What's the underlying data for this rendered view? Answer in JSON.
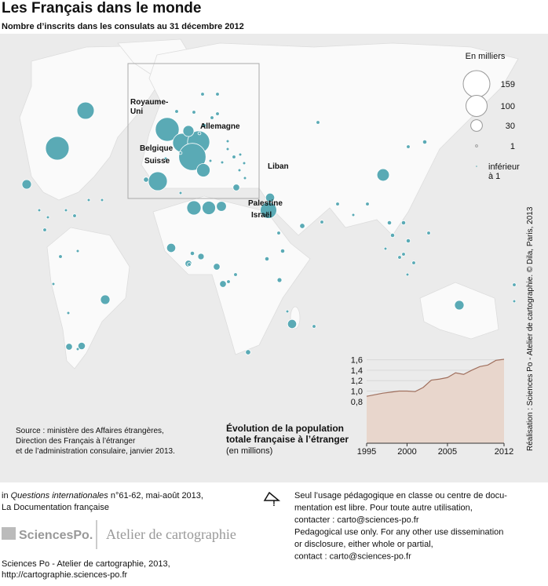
{
  "title": "Les Français dans le monde",
  "subtitle": "Nombre d’inscrits dans les consulats au 31 décembre 2012",
  "map": {
    "bubble_color": "#5aaab5",
    "values": [
      66,
      124,
      20,
      126,
      80,
      110,
      165,
      27,
      80,
      40,
      45,
      40,
      22,
      60,
      18,
      34,
      20,
      18,
      18,
      20,
      12,
      10,
      10,
      10,
      10,
      3,
      4,
      3,
      3,
      3,
      3,
      3,
      2,
      2,
      2,
      2,
      2,
      6,
      6,
      4,
      4,
      4,
      4,
      3,
      3,
      2,
      3,
      3,
      2,
      3,
      3,
      2,
      3,
      3,
      4,
      5,
      6,
      3,
      2,
      4,
      4,
      9,
      3,
      10,
      3,
      3,
      2,
      3,
      2,
      2,
      2,
      3,
      2,
      3,
      2,
      2,
      2,
      2,
      2,
      3,
      2,
      4,
      2,
      2,
      3,
      3,
      3,
      2,
      2,
      2,
      2
    ],
    "labels": [
      [
        "Royaume-",
        "Uni"
      ],
      [
        "Allemagne"
      ],
      [
        "Belgique"
      ],
      [
        "Suisse"
      ],
      [
        "Liban"
      ],
      [
        "Palestine"
      ],
      [
        "Israël"
      ]
    ]
  },
  "legend": {
    "title": "En milliers",
    "entries": [
      159,
      100,
      30,
      1
    ],
    "below": [
      "inférieur",
      "à 1"
    ]
  },
  "source": [
    "Source : ministère des Affaires étrangères,",
    "Direction des Français à l’étranger",
    "et de l’administration consulaire, janvier 2013."
  ],
  "credit": "Réalisation : Sciences Po - Atelier de cartographie. © Dila, Paris, 2013",
  "chart_data": {
    "type": "area",
    "title": [
      "Évolution de la population",
      "totale française à l’étranger"
    ],
    "subtitle": "(en millions)",
    "x": [
      1995,
      1996,
      1997,
      1998,
      1999,
      2000,
      2001,
      2002,
      2003,
      2004,
      2005,
      2006,
      2007,
      2008,
      2009,
      2010,
      2011,
      2012
    ],
    "values": [
      0.9,
      0.93,
      0.96,
      0.98,
      1.0,
      1.0,
      0.99,
      1.07,
      1.21,
      1.23,
      1.26,
      1.35,
      1.32,
      1.4,
      1.47,
      1.5,
      1.59,
      1.61
    ],
    "xlim": [
      1995,
      2012
    ],
    "xticks": [
      1995,
      2000,
      2005,
      2012
    ],
    "ylim": [
      0,
      1.7
    ],
    "yticks": [
      {
        "value": 0.8,
        "label": "0,8"
      },
      {
        "value": 1.0,
        "label": "1,0"
      },
      {
        "value": 1.2,
        "label": "1,2"
      },
      {
        "value": 1.4,
        "label": "1,4"
      },
      {
        "value": 1.6,
        "label": "1,6"
      }
    ],
    "fill": "#e8d6cc",
    "line_color": "#a0705e"
  },
  "footer": {
    "ref_pre": "in ",
    "ref_italic": "Questions internationales",
    "ref_post": " n°61-62, mai-août 2013,",
    "publisher": "La Documentation française",
    "notice": [
      "Seul l’usage pédagogique en classe ou centre de docu-",
      "mentation est libre. Pour toute autre utilisation,",
      "contacter : carto@sciences-po.fr",
      "Pedagogical use only. For any other use dissemination",
      "or disclosure, either whole or partial,",
      "contact : carto@sciences-po.fr"
    ],
    "logo": "SciencesPo.",
    "atelier": "Atelier de cartographie",
    "bottom": [
      "Sciences Po - Atelier de cartographie, 2013,",
      "http://cartographie.sciences-po.fr"
    ]
  }
}
